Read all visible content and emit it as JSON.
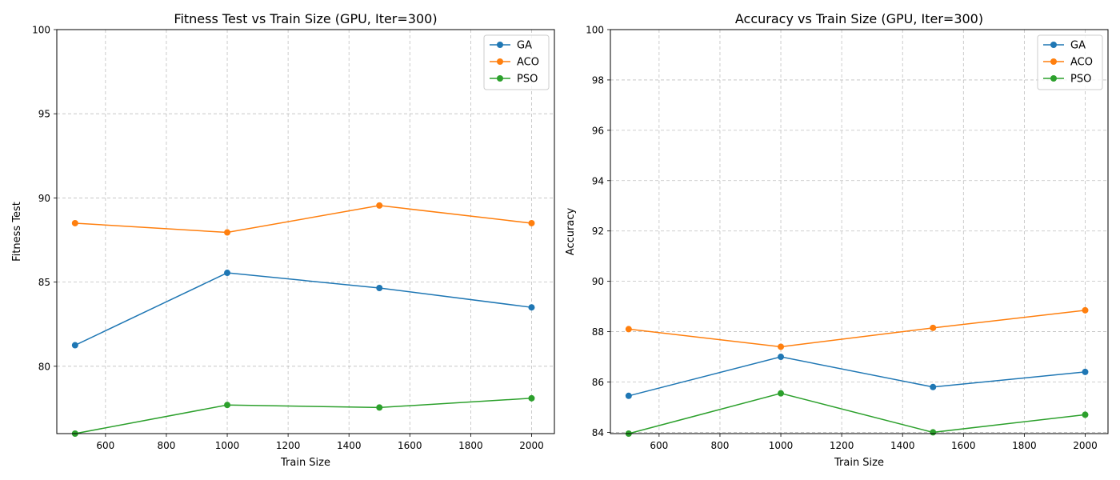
{
  "chart_data": [
    {
      "type": "line",
      "title": "Fitness Test vs Train Size (GPU, Iter=300)",
      "xlabel": "Train Size",
      "ylabel": "Fitness Test",
      "x": [
        500,
        1000,
        1500,
        2000
      ],
      "xlim": [
        440,
        2075
      ],
      "ylim": [
        76,
        100
      ],
      "xticks": [
        600,
        800,
        1000,
        1200,
        1400,
        1600,
        1800,
        2000
      ],
      "yticks": [
        80,
        85,
        90,
        95,
        100
      ],
      "grid": true,
      "legend_position": "top-right",
      "series": [
        {
          "name": "GA",
          "color": "#1f77b4",
          "values": [
            81.25,
            85.55,
            84.65,
            83.5
          ]
        },
        {
          "name": "ACO",
          "color": "#ff7f0e",
          "values": [
            88.5,
            87.95,
            89.55,
            88.5
          ]
        },
        {
          "name": "PSO",
          "color": "#2ca02c",
          "values": [
            76.0,
            77.7,
            77.55,
            78.1
          ]
        }
      ]
    },
    {
      "type": "line",
      "title": "Accuracy vs Train Size (GPU, Iter=300)",
      "xlabel": "Train Size",
      "ylabel": "Accuracy",
      "x": [
        500,
        1000,
        1500,
        2000
      ],
      "xlim": [
        440,
        2075
      ],
      "ylim": [
        83.95,
        100
      ],
      "xticks": [
        600,
        800,
        1000,
        1200,
        1400,
        1600,
        1800,
        2000
      ],
      "yticks": [
        84,
        86,
        88,
        90,
        92,
        94,
        96,
        98,
        100
      ],
      "grid": true,
      "legend_position": "top-right",
      "series": [
        {
          "name": "GA",
          "color": "#1f77b4",
          "values": [
            85.45,
            87.0,
            85.8,
            86.4
          ]
        },
        {
          "name": "ACO",
          "color": "#ff7f0e",
          "values": [
            88.1,
            87.4,
            88.15,
            88.85
          ]
        },
        {
          "name": "PSO",
          "color": "#2ca02c",
          "values": [
            83.95,
            85.55,
            84.0,
            84.7
          ]
        }
      ]
    }
  ]
}
